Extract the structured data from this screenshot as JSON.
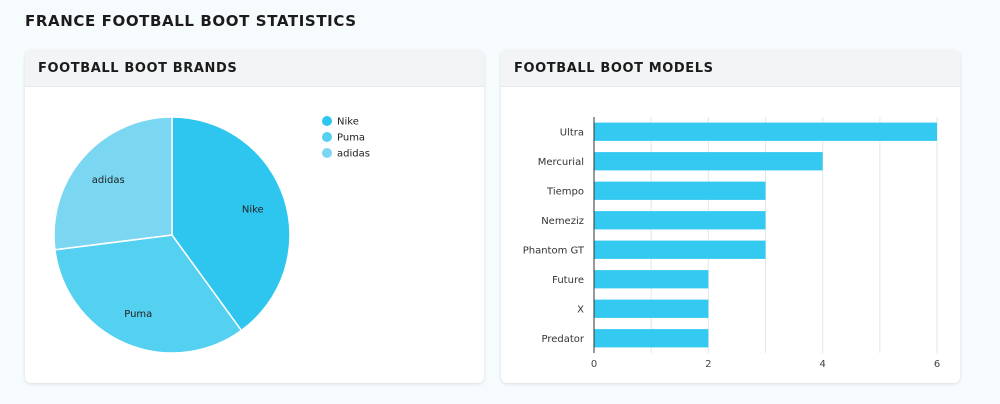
{
  "page": {
    "title": "FRANCE FOOTBALL BOOT STATISTICS"
  },
  "pie_card": {
    "title": "FOOTBALL BOOT BRANDS"
  },
  "bar_card": {
    "title": "FOOTBALL BOOT MODELS"
  },
  "chart_data": [
    {
      "type": "pie",
      "title": "FOOTBALL BOOT BRANDS",
      "categories": [
        "Nike",
        "Puma",
        "adidas"
      ],
      "values": [
        40,
        33,
        27
      ],
      "colors": [
        "#2ec6ef",
        "#54d0f0",
        "#7bd7f1"
      ],
      "legend": "top-right",
      "show_slice_labels": true
    },
    {
      "type": "bar",
      "orientation": "horizontal",
      "title": "FOOTBALL BOOT MODELS",
      "categories": [
        "Ultra",
        "Mercurial",
        "Tiempo",
        "Nemeziz",
        "Phantom GT",
        "Future",
        "X",
        "Predator"
      ],
      "values": [
        6,
        4,
        3,
        3,
        3,
        2,
        2,
        2
      ],
      "xlim": [
        0,
        6
      ],
      "x_ticks": [
        0,
        2,
        4,
        6
      ],
      "grid": true,
      "bar_color": "#33c9f1"
    }
  ]
}
